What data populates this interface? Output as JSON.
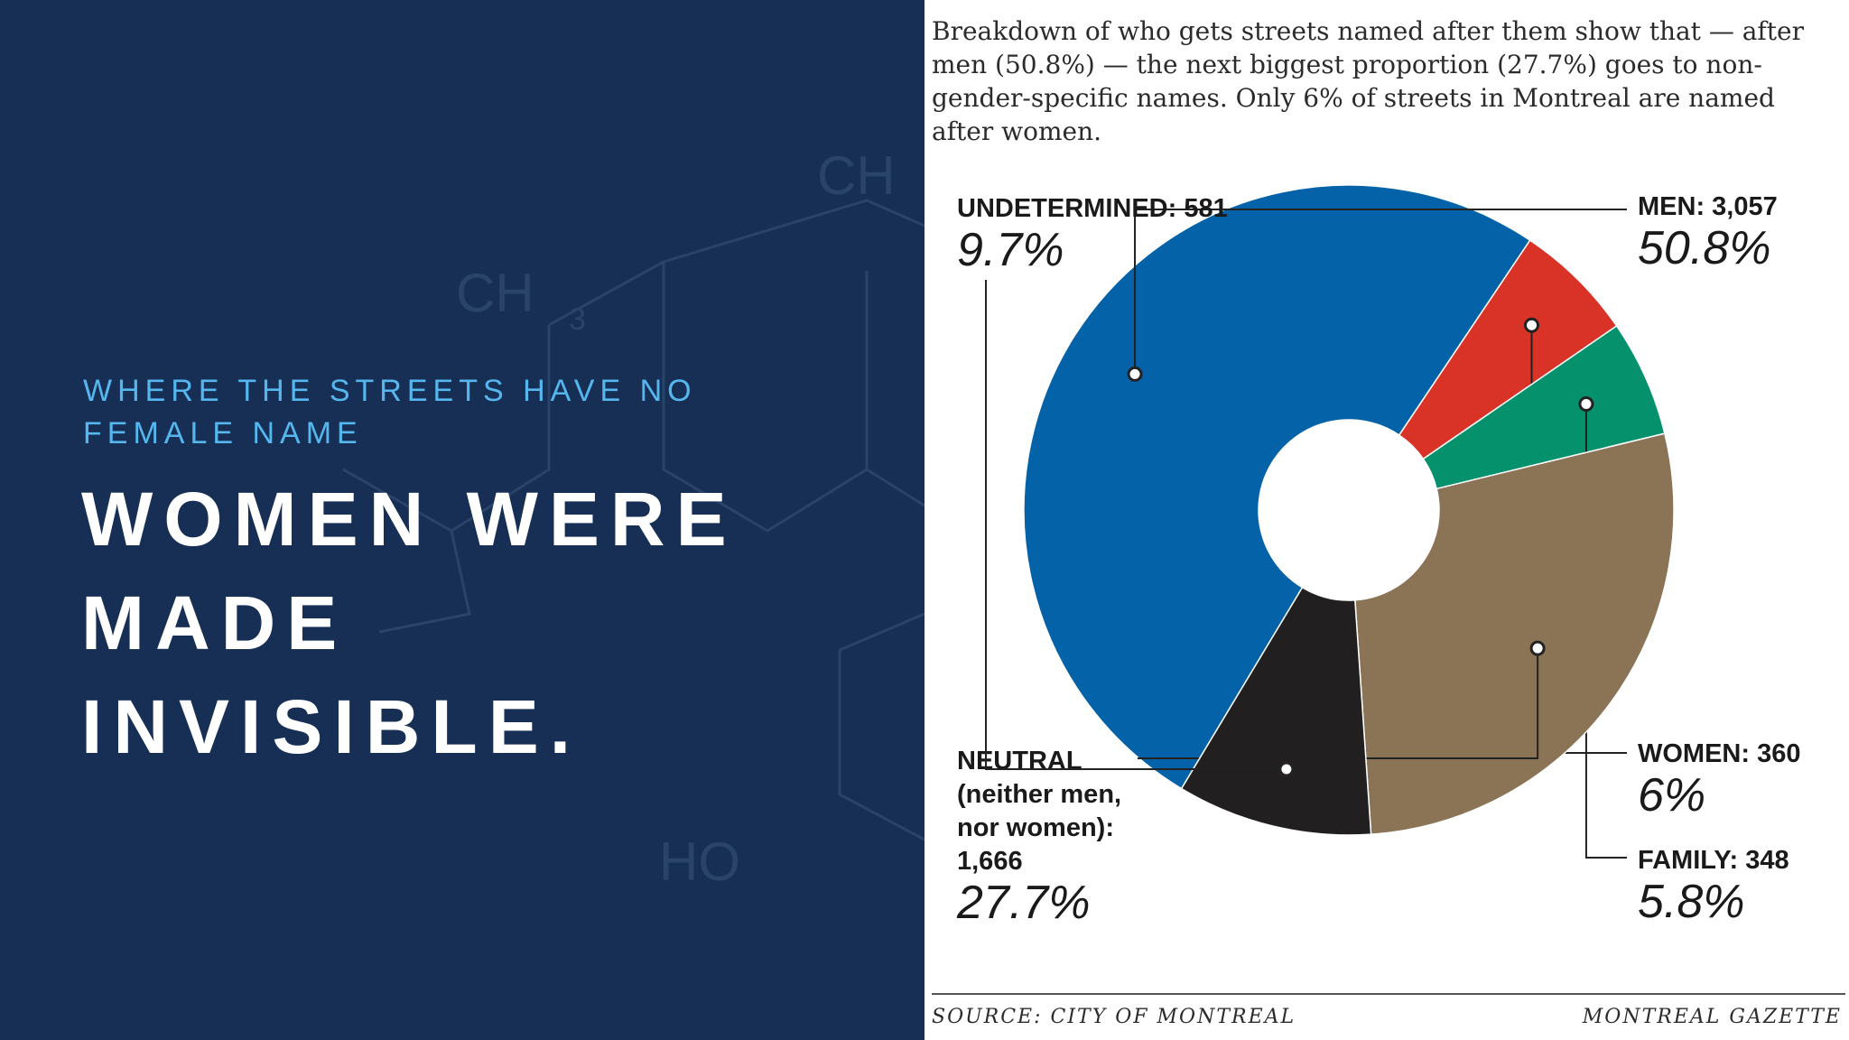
{
  "slide": {
    "kicker": "WHERE THE STREETS HAVE NO FEMALE NAME",
    "headline": "WOMEN WERE MADE INVISIBLE.",
    "molecule_labels": [
      "CH",
      "CH",
      "3",
      "HO"
    ]
  },
  "infographic": {
    "intro": "Breakdown of who gets streets named after them show that — after men (50.8%) — the next biggest proportion (27.7%) goes to non-gender-specific names. Only 6% of streets in Montreal are named after women.",
    "source": "SOURCE: CITY OF MONTREAL",
    "credit": "MONTREAL GAZETTE"
  },
  "colors": {
    "background_left": "#172f55",
    "kicker": "#55b7ee",
    "men": "#0462a8",
    "women": "#d93226",
    "family": "#04916c",
    "neutral": "#8b7355",
    "undetermined": "#221f20"
  },
  "chart_data": {
    "type": "pie",
    "donut": true,
    "title": "",
    "slices": [
      {
        "key": "men",
        "label": "MEN: 3,057",
        "label_lines": [
          "MEN: 3,057"
        ],
        "count": 3057,
        "percent_label": "50.8%",
        "percent": 50.8,
        "color": "#0462a8"
      },
      {
        "key": "women",
        "label": "WOMEN: 360",
        "label_lines": [
          "WOMEN: 360"
        ],
        "count": 360,
        "percent_label": "6%",
        "percent": 6.0,
        "color": "#d93226"
      },
      {
        "key": "family",
        "label": "FAMILY: 348",
        "label_lines": [
          "FAMILY: 348"
        ],
        "count": 348,
        "percent_label": "5.8%",
        "percent": 5.8,
        "color": "#04916c"
      },
      {
        "key": "neutral",
        "label": "NEUTRAL (neither men, nor women): 1,666",
        "label_lines": [
          "NEUTRAL",
          "(neither men,",
          "nor women):",
          "1,666"
        ],
        "count": 1666,
        "percent_label": "27.7%",
        "percent": 27.7,
        "color": "#8b7355"
      },
      {
        "key": "undetermined",
        "label": "UNDETERMINED: 581",
        "label_lines": [
          "UNDETERMINED: 581"
        ],
        "count": 581,
        "percent_label": "9.7%",
        "percent": 9.7,
        "color": "#221f20"
      }
    ]
  }
}
